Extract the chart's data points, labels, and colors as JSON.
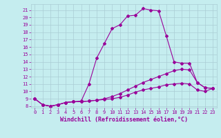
{
  "xlabel": "Windchill (Refroidissement éolien,°C)",
  "background_color": "#c5edef",
  "line_color": "#990099",
  "grid_color": "#aacdd4",
  "xlim": [
    -0.5,
    23.5
  ],
  "ylim": [
    7.8,
    21.8
  ],
  "xticks": [
    0,
    1,
    2,
    3,
    4,
    5,
    6,
    7,
    8,
    9,
    10,
    11,
    12,
    13,
    14,
    15,
    16,
    17,
    18,
    19,
    20,
    21,
    22,
    23
  ],
  "yticks": [
    8,
    9,
    10,
    11,
    12,
    13,
    14,
    15,
    16,
    17,
    18,
    19,
    20,
    21
  ],
  "curve1_x": [
    0,
    1,
    2,
    3,
    4,
    5,
    6,
    7,
    8,
    9,
    10,
    11,
    12,
    13,
    14,
    15,
    16,
    17,
    18,
    19,
    20,
    21,
    22,
    23
  ],
  "curve1_y": [
    9.0,
    8.2,
    8.0,
    8.2,
    8.5,
    8.6,
    8.7,
    11.0,
    14.5,
    16.5,
    18.5,
    19.0,
    20.2,
    20.3,
    21.2,
    21.0,
    20.9,
    17.5,
    14.0,
    13.8,
    13.8,
    11.2,
    10.5,
    10.4
  ],
  "curve2_x": [
    0,
    1,
    2,
    3,
    4,
    5,
    6,
    7,
    8,
    9,
    10,
    11,
    12,
    13,
    14,
    15,
    16,
    17,
    18,
    19,
    20,
    21,
    22,
    23
  ],
  "curve2_y": [
    9.0,
    8.2,
    8.0,
    8.2,
    8.5,
    8.6,
    8.6,
    8.7,
    8.8,
    9.0,
    9.3,
    9.7,
    10.2,
    10.7,
    11.2,
    11.6,
    12.0,
    12.4,
    12.8,
    13.0,
    12.9,
    11.2,
    10.5,
    10.4
  ],
  "curve3_x": [
    0,
    1,
    2,
    3,
    4,
    5,
    6,
    7,
    8,
    9,
    10,
    11,
    12,
    13,
    14,
    15,
    16,
    17,
    18,
    19,
    20,
    21,
    22,
    23
  ],
  "curve3_y": [
    9.0,
    8.2,
    8.0,
    8.2,
    8.5,
    8.6,
    8.6,
    8.7,
    8.8,
    8.9,
    9.0,
    9.2,
    9.5,
    9.9,
    10.2,
    10.4,
    10.6,
    10.9,
    11.0,
    11.1,
    11.0,
    10.2,
    10.0,
    10.4
  ],
  "fontsize_axis": 6.0,
  "fontsize_tick": 5.0,
  "marker_size": 2.0,
  "line_width": 0.8
}
